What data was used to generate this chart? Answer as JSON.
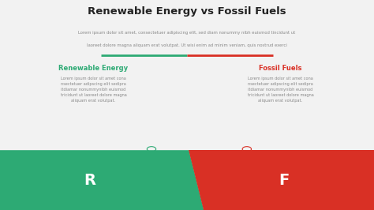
{
  "title": "Renewable Energy vs Fossil Fuels",
  "subtitle_line1": "Lorem ipsum dolor sit amet, consectetuer adipiscing elit, sed diam nonummy nibh euismod tincidunt ut",
  "subtitle_line2": "laoreet dolore magna aliquam erat volutpat. Ut wisi enim ad minim veniam, quis nostrud exerci",
  "left_heading": "Renewable Energy",
  "right_heading": "Fossil Fuels",
  "left_body": "Lorem ipsum dolor sit amet cona\nnsectetuer adipscing elit sedipra\nitdiamar nonummynibh euismod\ntricidunt ut laoreet dolore magna\naliquam erat volutpat.",
  "right_body": "Lorem ipsum dolor sit amet cona\nnsectetuer adipscing elit sedipra\nitdiamar nonummynibh euismod\ntricidunt ut laoreet dolore magna\naliquam erat volutpat.",
  "left_label": "R",
  "right_label": "F",
  "left_color": "#2daa74",
  "right_color": "#d93025",
  "divider_left_color": "#2daa74",
  "divider_right_color": "#d93025",
  "bg_color": "#f2f2f2",
  "left_heading_color": "#2daa74",
  "right_heading_color": "#d93025",
  "body_color": "#888888",
  "title_color": "#222222",
  "subtitle_color": "#888888"
}
